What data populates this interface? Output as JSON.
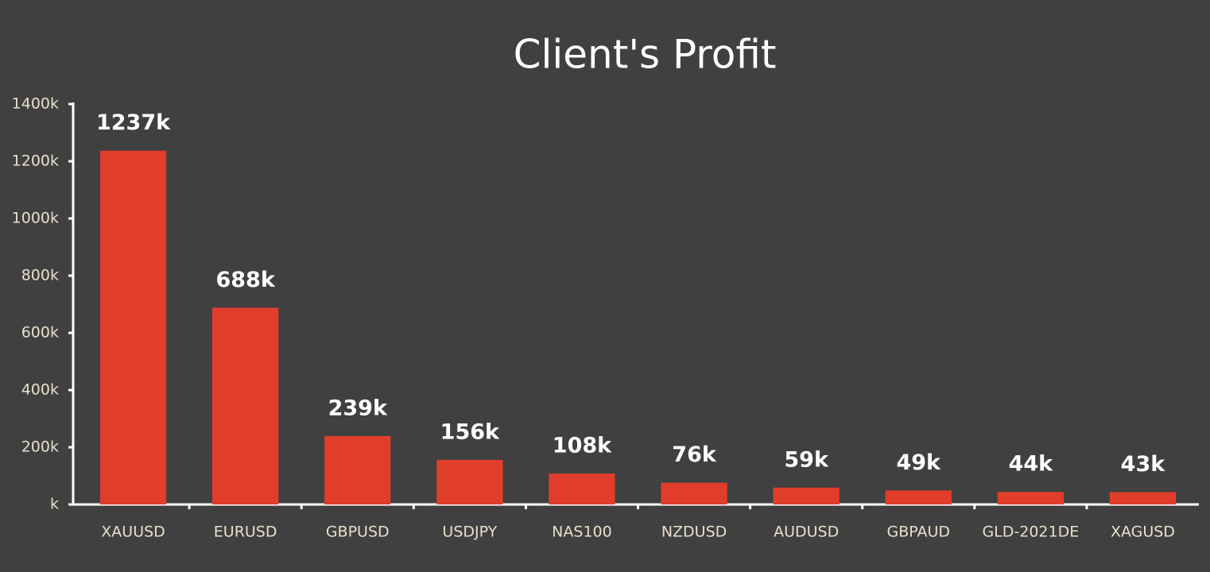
{
  "chart_data": {
    "type": "bar",
    "title": "Client's Profit",
    "categories": [
      "XAUUSD",
      "EURUSD",
      "GBPUSD",
      "USDJPY",
      "NAS100",
      "NZDUSD",
      "AUDUSD",
      "GBPAUD",
      "GLD-2021DE",
      "XAGUSD"
    ],
    "values": [
      1237,
      688,
      239,
      156,
      108,
      76,
      59,
      49,
      44,
      43
    ],
    "value_labels": [
      "1237k",
      "688k",
      "239k",
      "156k",
      "108k",
      "76k",
      "59k",
      "49k",
      "44k",
      "43k"
    ],
    "color": "#e03e2b",
    "ylim": [
      0,
      1400
    ],
    "yticks": [
      {
        "value": 0,
        "label": "k"
      },
      {
        "value": 200,
        "label": "200k"
      },
      {
        "value": 400,
        "label": "400k"
      },
      {
        "value": 600,
        "label": "600k"
      },
      {
        "value": 800,
        "label": "800k"
      },
      {
        "value": 1000,
        "label": "1000k"
      },
      {
        "value": 1200,
        "label": "1200k"
      },
      {
        "value": 1400,
        "label": "1400k"
      }
    ],
    "grid": false
  }
}
